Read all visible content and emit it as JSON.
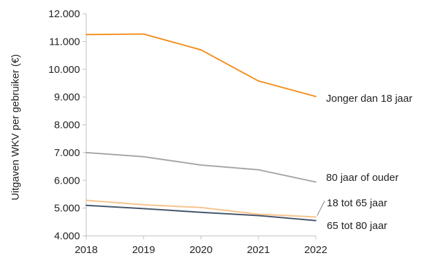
{
  "chart_data": {
    "type": "line",
    "title": "",
    "xlabel": "",
    "ylabel": "Uitgaven WKV per gebruiker (€)",
    "x": [
      2018,
      2019,
      2020,
      2021,
      2022
    ],
    "x_tick_labels": [
      "2018",
      "2019",
      "2020",
      "2021",
      "2022"
    ],
    "ylim": [
      4000,
      12000
    ],
    "y_ticks": [
      4000,
      5000,
      6000,
      7000,
      8000,
      9000,
      10000,
      11000,
      12000
    ],
    "y_tick_labels": [
      "4.000",
      "5.000",
      "6.000",
      "7.000",
      "8.000",
      "9.000",
      "10.000",
      "11.000",
      "12.000"
    ],
    "grid": false,
    "legend": "direct labels at line ends",
    "series": [
      {
        "name": "Jonger dan 18 jaar",
        "color": "#f39020",
        "values": [
          11250,
          11270,
          10700,
          9580,
          9020
        ]
      },
      {
        "name": "80 jaar of ouder",
        "color": "#a6a6a6",
        "values": [
          7000,
          6850,
          6550,
          6380,
          5940
        ]
      },
      {
        "name": "18 tot 65 jaar",
        "color": "#f8c28a",
        "values": [
          5280,
          5120,
          5020,
          4780,
          4680
        ]
      },
      {
        "name": "65 tot 80 jaar",
        "color": "#44546a",
        "values": [
          5100,
          4980,
          4850,
          4730,
          4550
        ]
      }
    ]
  }
}
